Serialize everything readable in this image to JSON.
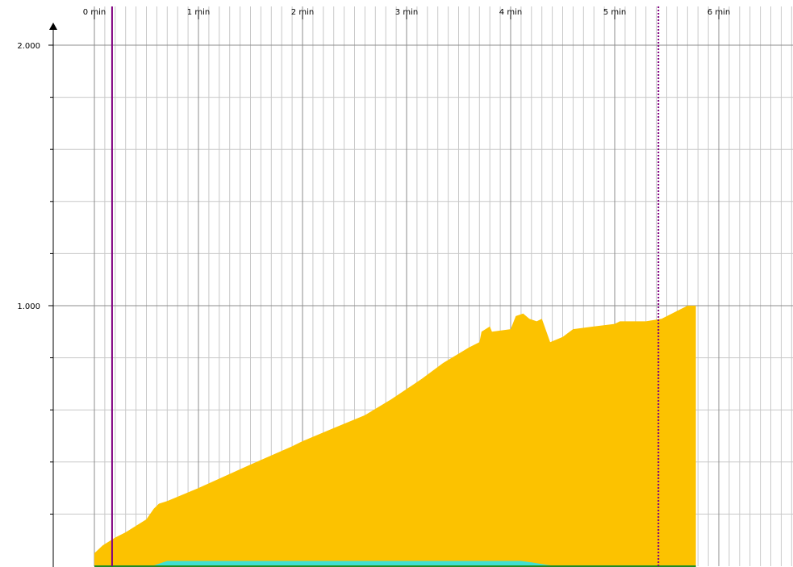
{
  "chart_data": {
    "type": "area",
    "title": "",
    "xlabel": "",
    "ylabel": "",
    "xlim": [
      0,
      6.75
    ],
    "ylim": [
      0,
      2.13
    ],
    "x_ticks": [
      {
        "value": 0,
        "label": "0 min"
      },
      {
        "value": 1,
        "label": "1 min"
      },
      {
        "value": 2,
        "label": "2 min"
      },
      {
        "value": 3,
        "label": "3 min"
      },
      {
        "value": 4,
        "label": "4 min"
      },
      {
        "value": 5,
        "label": "5 min"
      },
      {
        "value": 6,
        "label": "6 min"
      }
    ],
    "y_ticks": [
      {
        "value": 1.0,
        "label": "1.000"
      },
      {
        "value": 2.0,
        "label": "2.000"
      }
    ],
    "y_minor_step": 0.2,
    "x_minor_step": 0.1,
    "grid": true,
    "series": [
      {
        "color": "#fcc200",
        "points": [
          [
            0.0,
            0.05
          ],
          [
            0.08,
            0.08
          ],
          [
            0.2,
            0.11
          ],
          [
            0.3,
            0.13
          ],
          [
            0.5,
            0.18
          ],
          [
            0.57,
            0.22
          ],
          [
            0.62,
            0.24
          ],
          [
            0.7,
            0.25
          ],
          [
            1.0,
            0.3
          ],
          [
            1.5,
            0.39
          ],
          [
            1.9,
            0.46
          ],
          [
            2.0,
            0.48
          ],
          [
            2.3,
            0.53
          ],
          [
            2.6,
            0.58
          ],
          [
            2.85,
            0.64
          ],
          [
            3.0,
            0.68
          ],
          [
            3.15,
            0.72
          ],
          [
            3.35,
            0.78
          ],
          [
            3.6,
            0.84
          ],
          [
            3.7,
            0.86
          ],
          [
            3.72,
            0.9
          ],
          [
            3.8,
            0.92
          ],
          [
            3.82,
            0.9
          ],
          [
            4.0,
            0.91
          ],
          [
            4.05,
            0.96
          ],
          [
            4.12,
            0.97
          ],
          [
            4.18,
            0.95
          ],
          [
            4.25,
            0.94
          ],
          [
            4.3,
            0.95
          ],
          [
            4.38,
            0.86
          ],
          [
            4.5,
            0.88
          ],
          [
            4.6,
            0.91
          ],
          [
            4.8,
            0.92
          ],
          [
            5.0,
            0.93
          ],
          [
            5.05,
            0.94
          ],
          [
            5.3,
            0.94
          ],
          [
            5.45,
            0.95
          ],
          [
            5.6,
            0.98
          ],
          [
            5.7,
            1.0
          ],
          [
            5.78,
            1.0
          ]
        ]
      },
      {
        "color": "#40e0d0",
        "points": [
          [
            0.55,
            0.0
          ],
          [
            0.7,
            0.02
          ],
          [
            1.5,
            0.02
          ],
          [
            2.5,
            0.02
          ],
          [
            3.5,
            0.02
          ],
          [
            4.1,
            0.02
          ],
          [
            4.2,
            0.015
          ],
          [
            4.35,
            0.005
          ],
          [
            4.45,
            0.0
          ]
        ]
      }
    ],
    "markers": [
      {
        "x": 0.17,
        "style": "solid",
        "color": "#800080"
      },
      {
        "x": 5.42,
        "style": "dotted",
        "color": "#800080"
      }
    ],
    "baseline_color": "#228b22"
  }
}
